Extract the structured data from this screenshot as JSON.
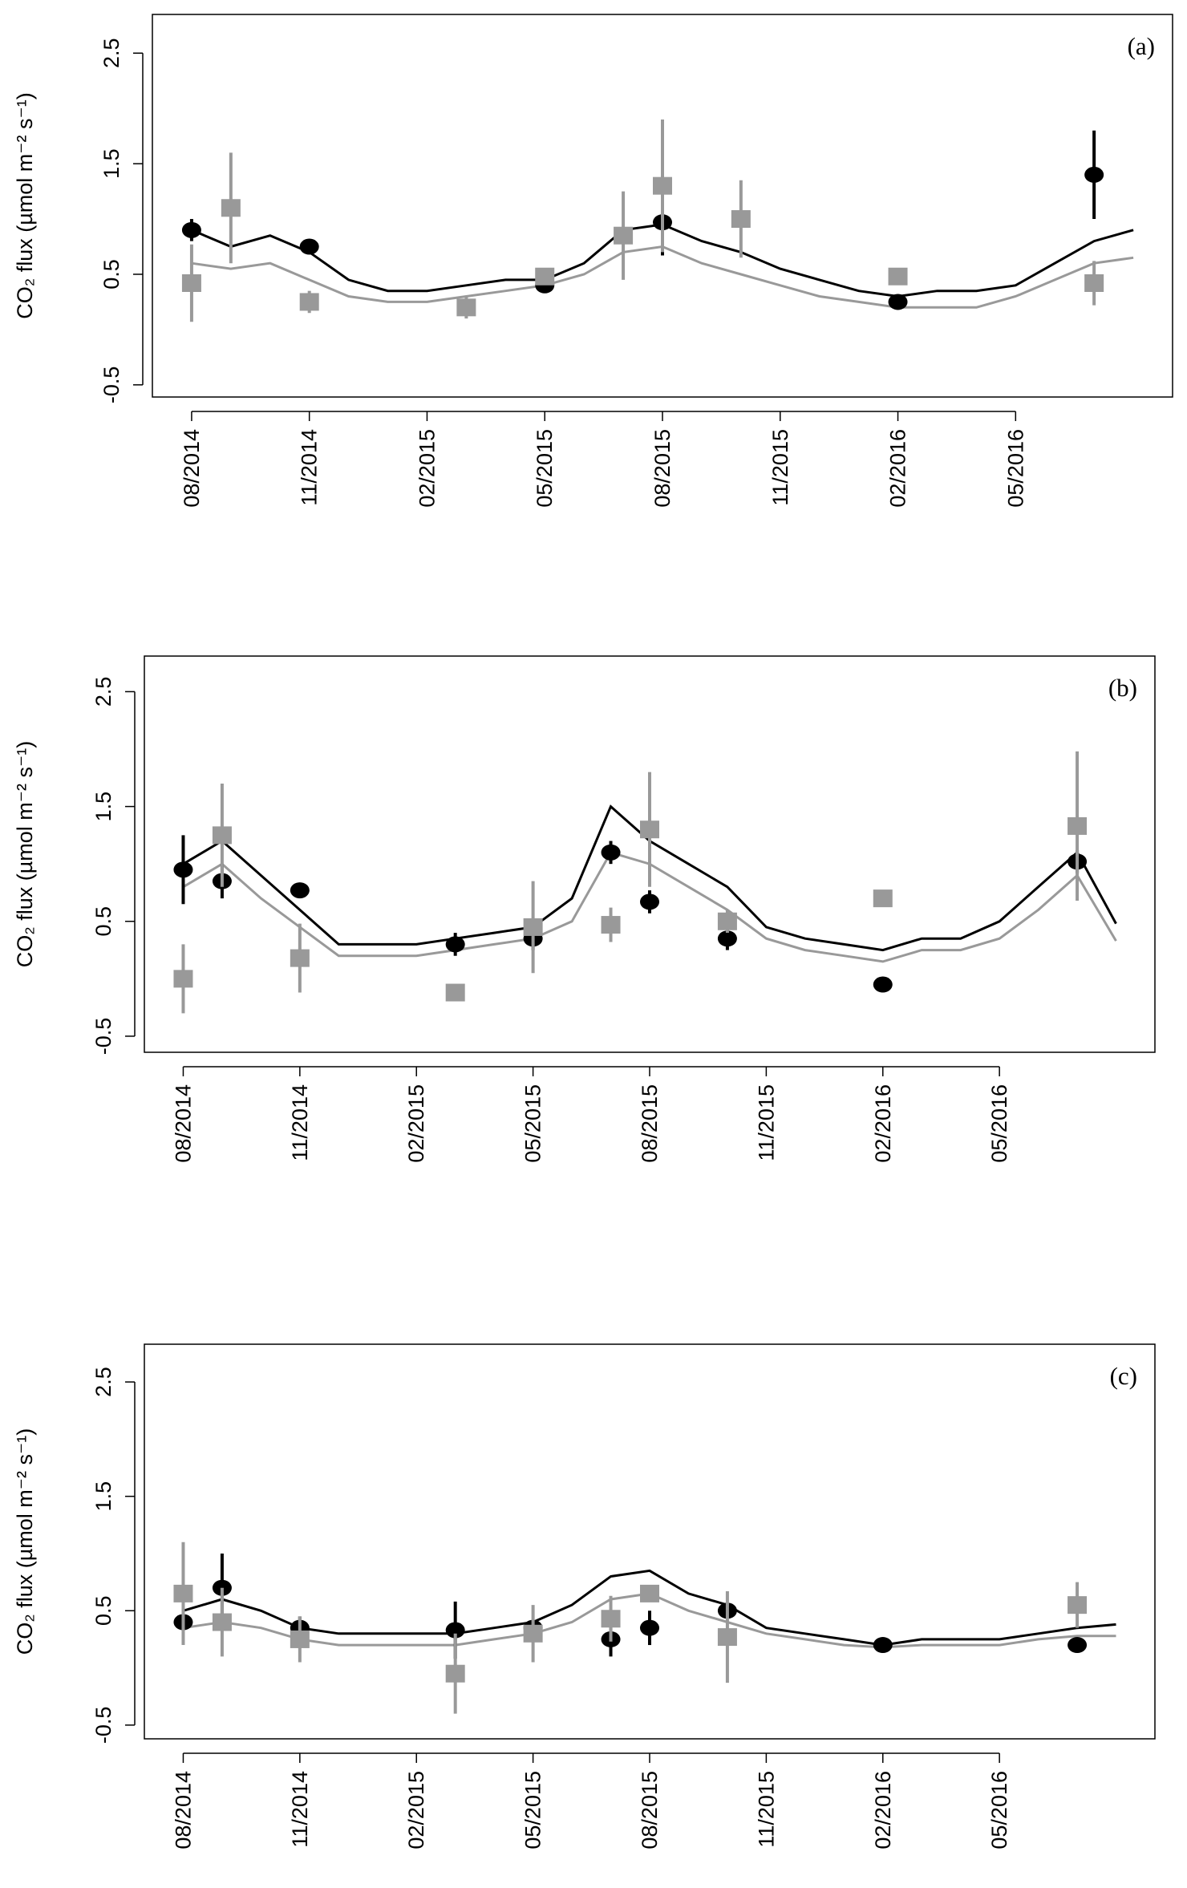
{
  "chart_data": [
    {
      "type": "line",
      "panel_label": "(a)",
      "y_label": "CO₂ flux (µmol m⁻² s⁻¹)",
      "x": [
        "08/2014",
        "09/2014",
        "10/2014",
        "11/2014",
        "12/2014",
        "01/2015",
        "02/2015",
        "03/2015",
        "04/2015",
        "05/2015",
        "06/2015",
        "07/2015",
        "08/2015",
        "09/2015",
        "10/2015",
        "11/2015",
        "12/2015",
        "01/2016",
        "02/2016",
        "03/2016",
        "04/2016",
        "05/2016",
        "06/2016",
        "07/2016",
        "08/2016"
      ],
      "series": [
        {
          "color": "#000000",
          "values": [
            0.9,
            0.75,
            0.85,
            0.7,
            0.45,
            0.35,
            0.35,
            0.4,
            0.45,
            0.45,
            0.6,
            0.9,
            0.95,
            0.8,
            0.7,
            0.55,
            0.45,
            0.35,
            0.3,
            0.35,
            0.35,
            0.4,
            0.6,
            0.8,
            0.9
          ]
        },
        {
          "color": "#999999",
          "values": [
            0.6,
            0.55,
            0.6,
            0.45,
            0.3,
            0.25,
            0.25,
            0.3,
            0.35,
            0.4,
            0.5,
            0.7,
            0.75,
            0.6,
            0.5,
            0.4,
            0.3,
            0.25,
            0.2,
            0.2,
            0.2,
            0.3,
            0.45,
            0.6,
            0.65
          ]
        }
      ],
      "points": [
        {
          "shape": "circle",
          "color": "#000000",
          "x": [
            "08/2014",
            "11/2014",
            "05/2015",
            "08/2015",
            "02/2016",
            "07/2016"
          ],
          "values": [
            0.9,
            0.75,
            0.4,
            0.97,
            0.25,
            1.4
          ],
          "errors": [
            0.1,
            0.05,
            0.05,
            0.3,
            0.05,
            0.4
          ]
        },
        {
          "shape": "square",
          "color": "#999999",
          "x": [
            "08/2014",
            "09/2014",
            "11/2014",
            "03/2015",
            "05/2015",
            "07/2015",
            "08/2015",
            "10/2015",
            "02/2016",
            "07/2016"
          ],
          "values": [
            0.42,
            1.1,
            0.25,
            0.2,
            0.48,
            0.85,
            1.3,
            1.0,
            0.48,
            0.42
          ],
          "errors": [
            0.35,
            0.5,
            0.1,
            0.1,
            0.05,
            0.4,
            0.6,
            0.35,
            0.05,
            0.2
          ]
        }
      ],
      "xlim": [
        "07/2014",
        "09/2016"
      ],
      "xticks": [
        "08/2014",
        "11/2014",
        "02/2015",
        "05/2015",
        "08/2015",
        "11/2015",
        "02/2016",
        "05/2016"
      ],
      "ylim": [
        -0.61,
        2.85
      ],
      "yticks": [
        -0.5,
        0.5,
        1.5,
        2.5
      ]
    },
    {
      "type": "line",
      "panel_label": "(b)",
      "y_label": "CO₂ flux (µmol m⁻² s⁻¹)",
      "x": [
        "08/2014",
        "09/2014",
        "10/2014",
        "11/2014",
        "12/2014",
        "01/2015",
        "02/2015",
        "03/2015",
        "04/2015",
        "05/2015",
        "06/2015",
        "07/2015",
        "08/2015",
        "09/2015",
        "10/2015",
        "11/2015",
        "12/2015",
        "01/2016",
        "02/2016",
        "03/2016",
        "04/2016",
        "05/2016",
        "06/2016",
        "07/2016",
        "08/2016"
      ],
      "series": [
        {
          "color": "#000000",
          "values": [
            1.0,
            1.2,
            0.9,
            0.6,
            0.3,
            0.3,
            0.3,
            0.35,
            0.4,
            0.45,
            0.7,
            1.5,
            1.2,
            1.0,
            0.8,
            0.45,
            0.35,
            0.3,
            0.25,
            0.35,
            0.35,
            0.5,
            0.8,
            1.1,
            0.48
          ]
        },
        {
          "color": "#999999",
          "values": [
            0.8,
            1.0,
            0.7,
            0.45,
            0.2,
            0.2,
            0.2,
            0.25,
            0.3,
            0.35,
            0.5,
            1.1,
            1.0,
            0.8,
            0.6,
            0.35,
            0.25,
            0.2,
            0.15,
            0.25,
            0.25,
            0.35,
            0.6,
            0.9,
            0.33
          ]
        }
      ],
      "points": [
        {
          "shape": "circle",
          "color": "#000000",
          "x": [
            "08/2014",
            "09/2014",
            "11/2014",
            "03/2015",
            "05/2015",
            "07/2015",
            "08/2015",
            "10/2015",
            "02/2016",
            "07/2016"
          ],
          "values": [
            0.95,
            0.85,
            0.77,
            0.3,
            0.35,
            1.1,
            0.67,
            0.35,
            -0.05,
            1.02
          ],
          "errors": [
            0.3,
            0.15,
            0.05,
            0.1,
            0.1,
            0.1,
            0.1,
            0.1,
            0.05,
            0.1
          ]
        },
        {
          "shape": "square",
          "color": "#999999",
          "x": [
            "08/2014",
            "09/2014",
            "11/2014",
            "03/2015",
            "05/2015",
            "07/2015",
            "08/2015",
            "10/2015",
            "02/2016",
            "07/2016"
          ],
          "values": [
            0.0,
            1.25,
            0.18,
            -0.12,
            0.45,
            0.47,
            1.3,
            0.5,
            0.7,
            1.33
          ],
          "errors": [
            0.3,
            0.45,
            0.3,
            0.03,
            0.4,
            0.15,
            0.5,
            0.1,
            0.03,
            0.65
          ]
        }
      ],
      "xlim": [
        "07/2014",
        "09/2016"
      ],
      "xticks": [
        "08/2014",
        "11/2014",
        "02/2015",
        "05/2015",
        "08/2015",
        "11/2015",
        "02/2016",
        "05/2016"
      ],
      "ylim": [
        -0.64,
        2.81
      ],
      "yticks": [
        -0.5,
        0.5,
        1.5,
        2.5
      ]
    },
    {
      "type": "line",
      "panel_label": "(c)",
      "y_label": "CO₂ flux (µmol m⁻² s⁻¹)",
      "x": [
        "08/2014",
        "09/2014",
        "10/2014",
        "11/2014",
        "12/2014",
        "01/2015",
        "02/2015",
        "03/2015",
        "04/2015",
        "05/2015",
        "06/2015",
        "07/2015",
        "08/2015",
        "09/2015",
        "10/2015",
        "11/2015",
        "12/2015",
        "01/2016",
        "02/2016",
        "03/2016",
        "04/2016",
        "05/2016",
        "06/2016",
        "07/2016",
        "08/2016"
      ],
      "series": [
        {
          "color": "#000000",
          "values": [
            0.5,
            0.6,
            0.5,
            0.35,
            0.3,
            0.3,
            0.3,
            0.3,
            0.35,
            0.4,
            0.55,
            0.8,
            0.85,
            0.65,
            0.55,
            0.35,
            0.3,
            0.25,
            0.2,
            0.25,
            0.25,
            0.25,
            0.3,
            0.35,
            0.38
          ]
        },
        {
          "color": "#999999",
          "values": [
            0.35,
            0.4,
            0.35,
            0.25,
            0.2,
            0.2,
            0.2,
            0.2,
            0.25,
            0.3,
            0.4,
            0.6,
            0.65,
            0.5,
            0.4,
            0.3,
            0.25,
            0.2,
            0.18,
            0.2,
            0.2,
            0.2,
            0.25,
            0.28,
            0.28
          ]
        }
      ],
      "points": [
        {
          "shape": "circle",
          "color": "#000000",
          "x": [
            "08/2014",
            "09/2014",
            "11/2014",
            "03/2015",
            "05/2015",
            "07/2015",
            "08/2015",
            "10/2015",
            "02/2016",
            "07/2016"
          ],
          "values": [
            0.4,
            0.7,
            0.35,
            0.33,
            0.35,
            0.25,
            0.35,
            0.5,
            0.2,
            0.2
          ],
          "errors": [
            0.05,
            0.3,
            0.1,
            0.25,
            0.05,
            0.15,
            0.15,
            0.05,
            0.03,
            0.05
          ]
        },
        {
          "shape": "square",
          "color": "#999999",
          "x": [
            "08/2014",
            "09/2014",
            "11/2014",
            "03/2015",
            "05/2015",
            "07/2015",
            "08/2015",
            "10/2015",
            "07/2016"
          ],
          "values": [
            0.65,
            0.4,
            0.25,
            -0.05,
            0.3,
            0.43,
            0.65,
            0.27,
            0.55
          ],
          "errors": [
            0.45,
            0.3,
            0.2,
            0.35,
            0.25,
            0.2,
            0.05,
            0.4,
            0.2
          ]
        }
      ],
      "xlim": [
        "07/2014",
        "09/2016"
      ],
      "xticks": [
        "08/2014",
        "11/2014",
        "02/2015",
        "05/2015",
        "08/2015",
        "11/2015",
        "02/2016",
        "05/2016"
      ],
      "ylim": [
        -0.62,
        2.83
      ],
      "yticks": [
        -0.5,
        0.5,
        1.5,
        2.5
      ]
    }
  ]
}
